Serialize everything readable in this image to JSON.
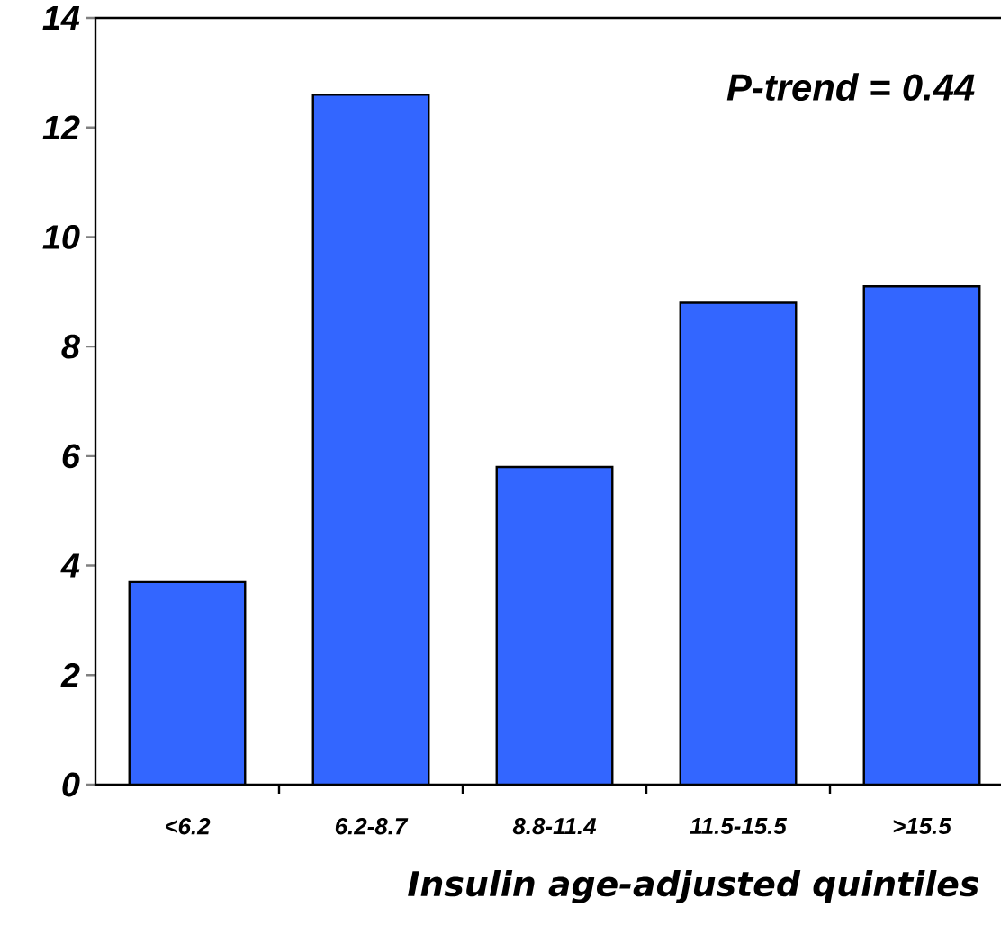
{
  "chart_data": {
    "type": "bar",
    "xlabel": "Insulin age-adjusted quintiles",
    "categories": [
      "<6.2",
      "6.2-8.7",
      "8.8-11.4",
      "11.5-15.5",
      ">15.5"
    ],
    "values": [
      3.7,
      12.6,
      5.8,
      8.8,
      9.1
    ],
    "color": "#3366ff",
    "ylim": [
      0,
      14
    ],
    "yticks": [
      0,
      2,
      4,
      6,
      8,
      10,
      12,
      14
    ],
    "grid": false,
    "annotations": [
      "*P-trend* = *0.44*"
    ]
  }
}
